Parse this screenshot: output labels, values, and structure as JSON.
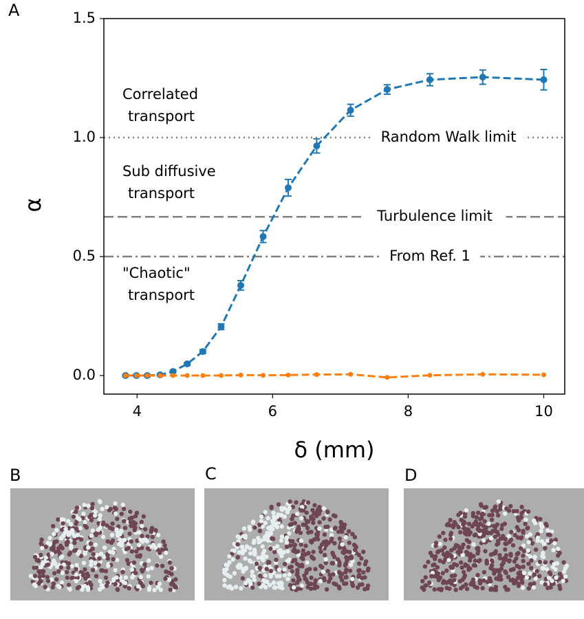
{
  "chart_data": {
    "type": "line",
    "x_label": "δ (mm)",
    "y_label": "α",
    "x": [
      3.83,
      3.99,
      4.15,
      4.34,
      4.53,
      4.74,
      4.97,
      5.24,
      5.53,
      5.86,
      6.23,
      6.65,
      7.15,
      7.69,
      8.32,
      9.1,
      10.0
    ],
    "series": [
      {
        "color": "#1f77b4",
        "values": [
          0,
          0,
          0,
          0.003,
          0.017,
          0.049,
          0.101,
          0.205,
          0.379,
          0.584,
          0.789,
          0.965,
          1.115,
          1.202,
          1.243,
          1.254,
          1.243
        ],
        "errors": [
          0.004,
          0.004,
          0.004,
          0.004,
          0.005,
          0.006,
          0.008,
          0.012,
          0.02,
          0.025,
          0.035,
          0.03,
          0.025,
          0.02,
          0.025,
          0.03,
          0.043
        ]
      },
      {
        "color": "#ff7f0e",
        "values": [
          0,
          0,
          0,
          0,
          0,
          0,
          0,
          0,
          0.002,
          0.001,
          0.002,
          0.004,
          0.005,
          -0.008,
          0.001,
          0.005,
          0.003
        ]
      }
    ],
    "xlim": [
      3.51,
      10.31
    ],
    "ylim": [
      -0.078,
      1.5
    ],
    "xticks": [
      4,
      6,
      8,
      10
    ],
    "yticks": [
      {
        "value": 0,
        "label": "0.0"
      },
      {
        "value": 0.5,
        "label": "0.5"
      },
      {
        "value": 1,
        "label": "1.0"
      },
      {
        "value": 1.5,
        "label": "1.5"
      }
    ],
    "reference_lines": [
      {
        "value": 1,
        "label": "Random Walk limit",
        "style": "dotted"
      },
      {
        "value": 0.667,
        "label": "Turbulence limit",
        "style": "dashed"
      },
      {
        "value": 0.5,
        "label": "From Ref. 1",
        "style": "dashdot"
      }
    ],
    "annotations": [
      [
        "Correlated",
        "transport"
      ],
      [
        "Sub diffusive",
        "transport"
      ],
      [
        "\"Chaotic\"",
        "transport"
      ]
    ],
    "panel_labels": [
      "A",
      "B",
      "C",
      "D"
    ]
  }
}
